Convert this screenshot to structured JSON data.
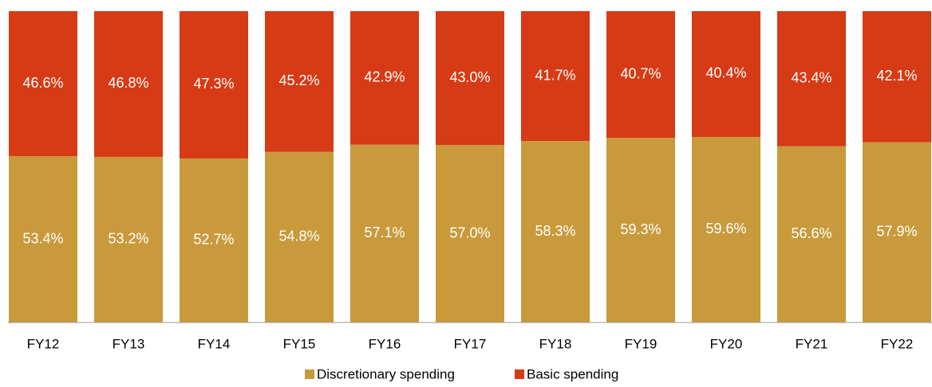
{
  "chart_data": {
    "type": "stacked_bar",
    "categories": [
      "FY12",
      "FY13",
      "FY14",
      "FY15",
      "FY16",
      "FY17",
      "FY18",
      "FY19",
      "FY20",
      "FY21",
      "FY22"
    ],
    "series": [
      {
        "name": "Discretionary spending",
        "color": "#c89a3c",
        "values": [
          53.4,
          53.2,
          52.7,
          54.8,
          57.1,
          57.0,
          58.3,
          59.3,
          59.6,
          56.6,
          57.9
        ],
        "value_labels": [
          "53.4%",
          "53.2%",
          "52.7%",
          "54.8%",
          "57.1%",
          "57.0%",
          "58.3%",
          "59.3%",
          "59.6%",
          "56.6%",
          "57.9%"
        ]
      },
      {
        "name": "Basic spending",
        "color": "#d63b16",
        "values": [
          46.6,
          46.8,
          47.3,
          45.2,
          42.9,
          43.0,
          41.7,
          40.7,
          40.4,
          43.4,
          42.1
        ],
        "value_labels": [
          "46.6%",
          "46.8%",
          "47.3%",
          "45.2%",
          "42.9%",
          "43.0%",
          "41.7%",
          "40.7%",
          "40.4%",
          "43.4%",
          "42.1%"
        ]
      }
    ],
    "ylim": [
      0,
      100
    ],
    "legend": "bottom"
  }
}
